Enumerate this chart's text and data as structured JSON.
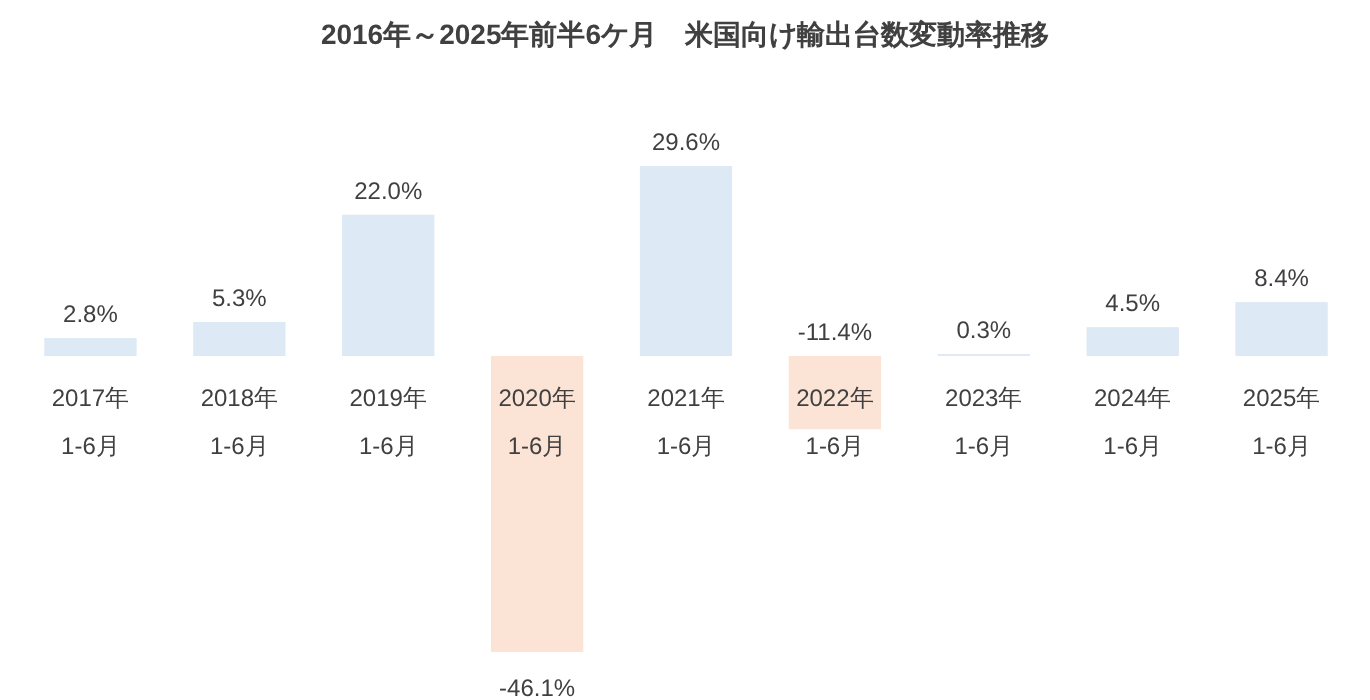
{
  "chart_data": {
    "type": "bar",
    "title": "2016年～2025年前半6ケ月　米国向け輸出台数変動率推移",
    "categories": [
      "2017年\n1-6月",
      "2018年\n1-6月",
      "2019年\n1-6月",
      "2020年\n1-6月",
      "2021年\n1-6月",
      "2022年\n1-6月",
      "2023年\n1-6月",
      "2024年\n1-6月",
      "2025年\n1-6月"
    ],
    "values": [
      2.8,
      5.3,
      22.0,
      -46.1,
      29.6,
      -11.4,
      0.3,
      4.5,
      8.4
    ],
    "value_labels": [
      "2.8%",
      "5.3%",
      "22.0%",
      "-46.1%",
      "29.6%",
      "-11.4%",
      "0.3%",
      "4.5%",
      "8.4%"
    ],
    "colors": [
      "#dde9f5",
      "#dde9f5",
      "#dde9f5",
      "#fbe3d5",
      "#dde9f5",
      "#fbe3d5",
      "#dde9f5",
      "#dde9f5",
      "#dde9f5"
    ]
  }
}
